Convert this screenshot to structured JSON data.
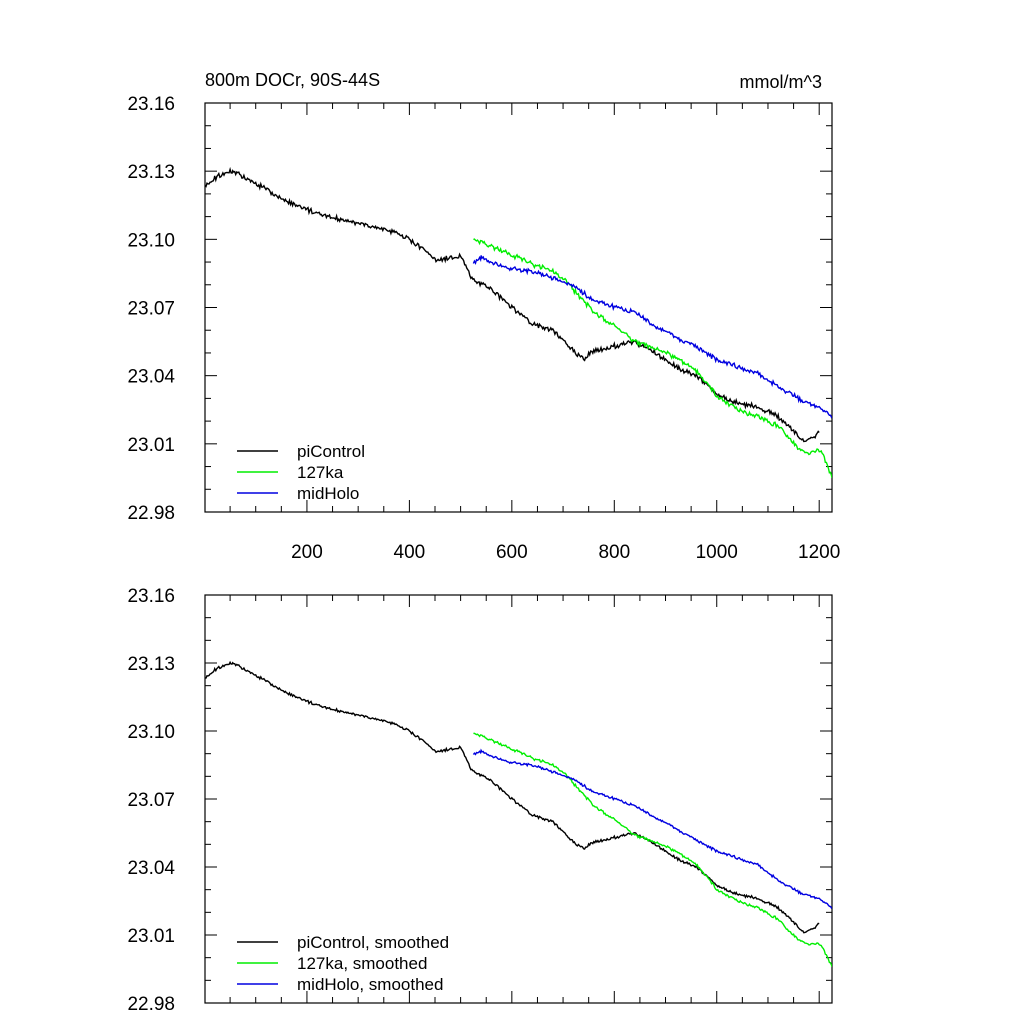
{
  "chart_data": [
    {
      "type": "line",
      "title_left": "800m DOCr, 90S-44S",
      "title_right": "mmol/m^3",
      "xlabel": "",
      "ylabel": "",
      "xlim": [
        1,
        1225
      ],
      "ylim": [
        22.98,
        23.16
      ],
      "y_ticks": [
        22.98,
        23.01,
        23.04,
        23.07,
        23.1,
        23.13,
        23.16
      ],
      "y_tick_labels": [
        "22.98",
        "23.01",
        "23.04",
        "23.07",
        "23.10",
        "23.13",
        "23.16"
      ],
      "x_ticks": [
        200,
        400,
        600,
        800,
        1000,
        1200
      ],
      "x_tick_labels": [
        "200",
        "400",
        "600",
        "800",
        "1000",
        "1200"
      ],
      "legend_position": "bottom-left",
      "series": [
        {
          "name": "piControl",
          "color": "#000000",
          "x": [
            1,
            20,
            40,
            55,
            80,
            120,
            160,
            200,
            240,
            280,
            320,
            360,
            400,
            430,
            450,
            480,
            500,
            520,
            560,
            600,
            640,
            680,
            720,
            740,
            760,
            800,
            840,
            880,
            920,
            960,
            1000,
            1040,
            1080,
            1120,
            1140,
            1170,
            1190,
            1200
          ],
          "y": [
            23.123,
            23.127,
            23.129,
            23.13,
            23.127,
            23.122,
            23.117,
            23.113,
            23.11,
            23.108,
            23.106,
            23.104,
            23.1,
            23.095,
            23.091,
            23.092,
            23.093,
            23.083,
            23.078,
            23.07,
            23.063,
            23.06,
            23.051,
            23.047,
            23.051,
            23.053,
            23.055,
            23.05,
            23.044,
            23.04,
            23.032,
            23.028,
            23.026,
            23.022,
            23.018,
            23.011,
            23.013,
            23.015
          ]
        },
        {
          "name": "127ka",
          "color": "#00ee00",
          "x": [
            525,
            540,
            560,
            600,
            640,
            680,
            700,
            720,
            740,
            760,
            800,
            840,
            880,
            920,
            960,
            980,
            1000,
            1040,
            1080,
            1120,
            1140,
            1160,
            1180,
            1200,
            1210,
            1225
          ],
          "y": [
            23.1,
            23.099,
            23.097,
            23.093,
            23.089,
            23.086,
            23.083,
            23.078,
            23.073,
            23.068,
            23.062,
            23.055,
            23.052,
            23.048,
            23.042,
            23.037,
            23.031,
            23.025,
            23.022,
            23.018,
            23.013,
            23.008,
            23.006,
            23.007,
            23.004,
            22.995
          ]
        },
        {
          "name": "midHolo",
          "color": "#0000e0",
          "x": [
            525,
            540,
            560,
            600,
            640,
            680,
            720,
            760,
            800,
            840,
            880,
            920,
            960,
            1000,
            1040,
            1080,
            1120,
            1160,
            1200,
            1225
          ],
          "y": [
            23.09,
            23.092,
            23.09,
            23.087,
            23.086,
            23.083,
            23.08,
            23.073,
            23.07,
            23.068,
            23.062,
            23.057,
            23.053,
            23.047,
            23.044,
            23.041,
            23.035,
            23.03,
            23.026,
            23.022
          ]
        }
      ]
    },
    {
      "type": "line",
      "title_left": "",
      "title_right": "",
      "xlabel": "",
      "ylabel": "",
      "xlim": [
        1,
        1225
      ],
      "ylim": [
        22.98,
        23.16
      ],
      "y_ticks": [
        22.98,
        23.01,
        23.04,
        23.07,
        23.1,
        23.13,
        23.16
      ],
      "y_tick_labels": [
        "22.98",
        "23.01",
        "23.04",
        "23.07",
        "23.10",
        "23.13",
        "23.16"
      ],
      "x_ticks": [
        200,
        400,
        600,
        800,
        1000,
        1200
      ],
      "x_tick_labels": [],
      "legend_position": "bottom-left",
      "series": [
        {
          "name": "piControl, smoothed",
          "color": "#000000",
          "x": [
            1,
            20,
            40,
            55,
            80,
            120,
            160,
            200,
            240,
            280,
            320,
            360,
            400,
            430,
            450,
            480,
            500,
            520,
            560,
            600,
            640,
            680,
            720,
            740,
            760,
            800,
            840,
            880,
            920,
            960,
            1000,
            1040,
            1080,
            1120,
            1140,
            1170,
            1190,
            1200
          ],
          "y": [
            23.123,
            23.127,
            23.129,
            23.13,
            23.127,
            23.122,
            23.117,
            23.113,
            23.11,
            23.108,
            23.106,
            23.104,
            23.1,
            23.095,
            23.091,
            23.092,
            23.093,
            23.083,
            23.078,
            23.07,
            23.063,
            23.06,
            23.051,
            23.048,
            23.051,
            23.053,
            23.055,
            23.05,
            23.044,
            23.04,
            23.032,
            23.028,
            23.026,
            23.022,
            23.018,
            23.011,
            23.013,
            23.015
          ]
        },
        {
          "name": "127ka, smoothed",
          "color": "#00ee00",
          "x": [
            525,
            540,
            560,
            600,
            640,
            680,
            700,
            720,
            740,
            760,
            800,
            840,
            880,
            920,
            960,
            980,
            1000,
            1040,
            1080,
            1120,
            1140,
            1160,
            1180,
            1200,
            1210,
            1225
          ],
          "y": [
            23.099,
            23.098,
            23.096,
            23.092,
            23.088,
            23.085,
            23.082,
            23.077,
            23.072,
            23.067,
            23.061,
            23.054,
            23.051,
            23.047,
            23.041,
            23.036,
            23.03,
            23.025,
            23.022,
            23.017,
            23.012,
            23.008,
            23.006,
            23.006,
            23.003,
            22.996
          ]
        },
        {
          "name": "midHolo, smoothed",
          "color": "#0000e0",
          "x": [
            525,
            540,
            560,
            600,
            640,
            680,
            720,
            760,
            800,
            840,
            880,
            920,
            960,
            1000,
            1040,
            1080,
            1120,
            1160,
            1200,
            1225
          ],
          "y": [
            23.09,
            23.091,
            23.089,
            23.086,
            23.085,
            23.082,
            23.079,
            23.073,
            23.07,
            23.067,
            23.062,
            23.057,
            23.052,
            23.047,
            23.044,
            23.041,
            23.034,
            23.029,
            23.026,
            23.022
          ]
        }
      ]
    }
  ]
}
